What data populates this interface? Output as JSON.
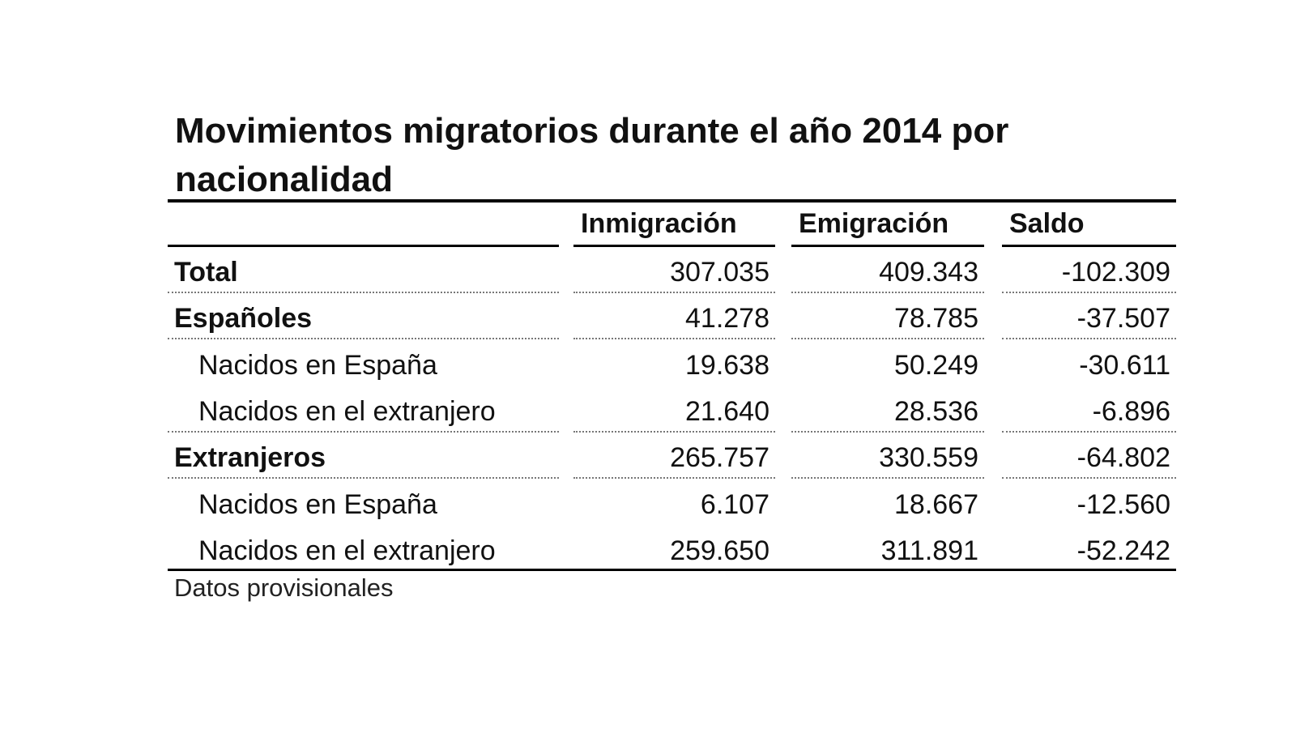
{
  "title": "Movimientos migratorios durante el año 2014 por nacionalidad",
  "table": {
    "columns": [
      "Inmigración",
      "Emigración",
      "Saldo"
    ],
    "rows": [
      [
        "Total",
        "307.035",
        "409.343",
        "-102.309"
      ],
      [
        "Españoles",
        "41.278",
        "78.785",
        "-37.507"
      ],
      [
        "Nacidos en España",
        "19.638",
        "50.249",
        "-30.611"
      ],
      [
        "Nacidos en el extranjero",
        "21.640",
        "28.536",
        "-6.896"
      ],
      [
        "Extranjeros",
        "265.757",
        "330.559",
        "-64.802"
      ],
      [
        "Nacidos en España",
        "6.107",
        "18.667",
        "-12.560"
      ],
      [
        "Nacidos en el extranjero",
        "259.650",
        "311.891",
        "-52.242"
      ]
    ]
  },
  "footnote": "Datos provisionales"
}
